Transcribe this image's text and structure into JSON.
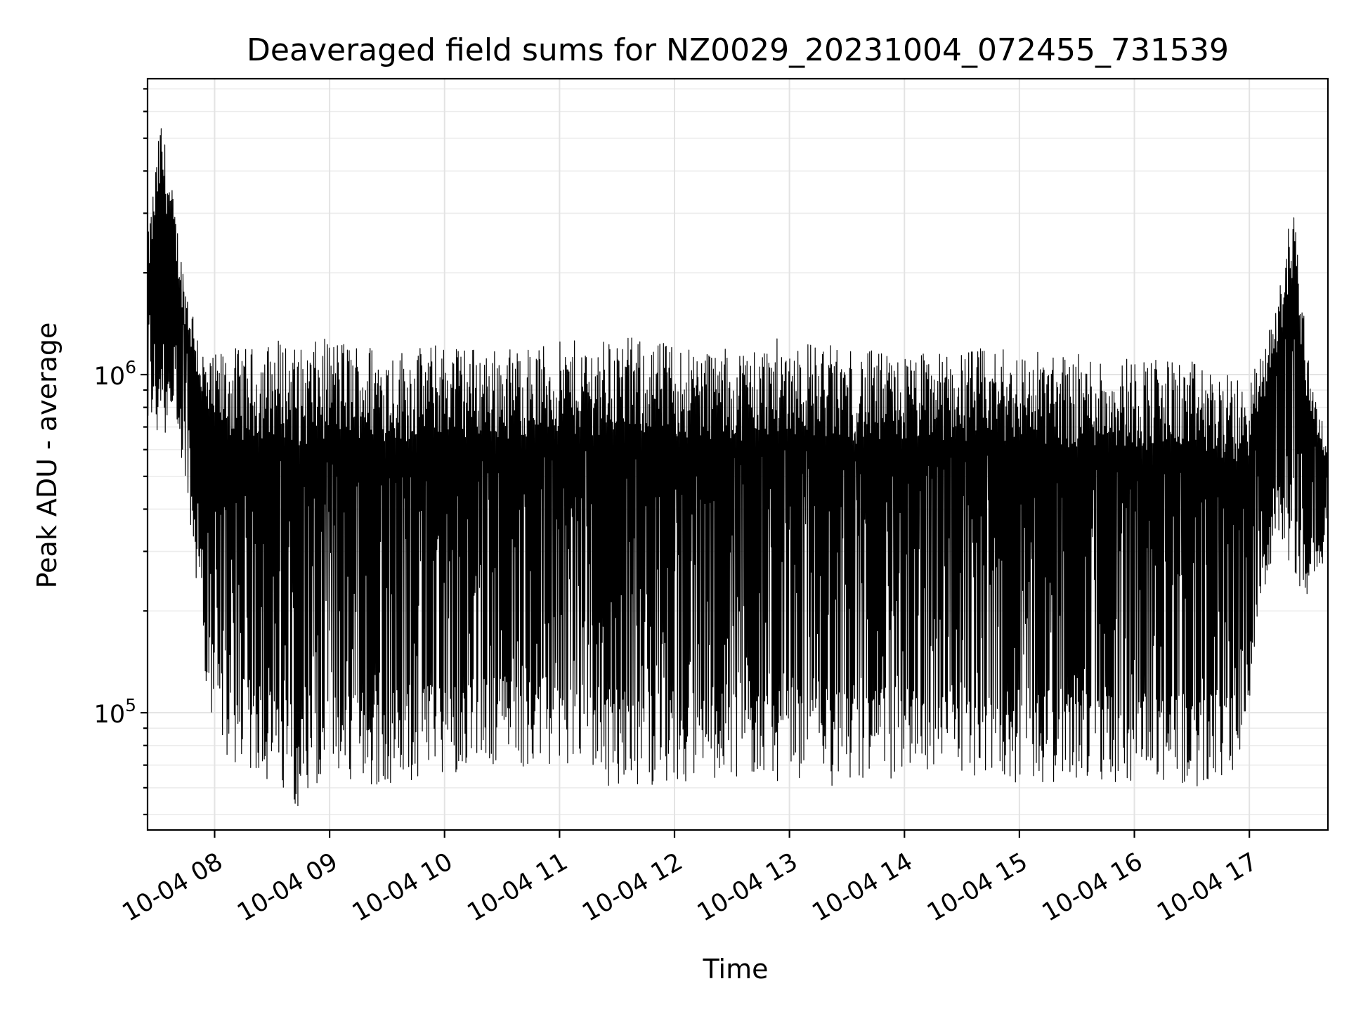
{
  "chart_data": {
    "type": "line",
    "title": "Deaveraged field sums for NZ0029_20231004_072455_731539",
    "xlabel": "Time",
    "ylabel": "Peak ADU - average",
    "yscale": "log",
    "ylim": [
      45000,
      7500000
    ],
    "xlim": [
      "2023-10-04T07:25:00",
      "2023-10-04T17:41:00"
    ],
    "grid": true,
    "legend": "none",
    "line_color": "#000000",
    "x_ticks": [
      {
        "t": "2023-10-04T08:00:00",
        "label": "10-04 08"
      },
      {
        "t": "2023-10-04T09:00:00",
        "label": "10-04 09"
      },
      {
        "t": "2023-10-04T10:00:00",
        "label": "10-04 10"
      },
      {
        "t": "2023-10-04T11:00:00",
        "label": "10-04 11"
      },
      {
        "t": "2023-10-04T12:00:00",
        "label": "10-04 12"
      },
      {
        "t": "2023-10-04T13:00:00",
        "label": "10-04 13"
      },
      {
        "t": "2023-10-04T14:00:00",
        "label": "10-04 14"
      },
      {
        "t": "2023-10-04T15:00:00",
        "label": "10-04 15"
      },
      {
        "t": "2023-10-04T16:00:00",
        "label": "10-04 16"
      },
      {
        "t": "2023-10-04T17:00:00",
        "label": "10-04 17"
      }
    ],
    "y_ticks": [
      {
        "value": 100000,
        "base": "10",
        "exp": "5"
      },
      {
        "value": 1000000,
        "base": "10",
        "exp": "6"
      }
    ],
    "series": [
      {
        "envelope": [
          {
            "t": "2023-10-04T07:25:00",
            "min": 620000,
            "max": 2500000
          },
          {
            "t": "2023-10-04T07:32:00",
            "min": 650000,
            "max": 5800000
          },
          {
            "t": "2023-10-04T07:38:00",
            "min": 700000,
            "max": 3500000
          },
          {
            "t": "2023-10-04T07:44:00",
            "min": 450000,
            "max": 2000000
          },
          {
            "t": "2023-10-04T07:50:00",
            "min": 250000,
            "max": 1500000
          },
          {
            "t": "2023-10-04T07:56:00",
            "min": 110000,
            "max": 1100000
          },
          {
            "t": "2023-10-04T08:05:00",
            "min": 72000,
            "max": 1200000
          },
          {
            "t": "2023-10-04T08:20:00",
            "min": 66000,
            "max": 1200000
          },
          {
            "t": "2023-10-04T08:35:00",
            "min": 58000,
            "max": 1300000
          },
          {
            "t": "2023-10-04T08:45:00",
            "min": 52000,
            "max": 1200000
          },
          {
            "t": "2023-10-04T09:00:00",
            "min": 56000,
            "max": 1300000
          },
          {
            "t": "2023-10-04T09:20:00",
            "min": 60000,
            "max": 1250000
          },
          {
            "t": "2023-10-04T09:40:00",
            "min": 62000,
            "max": 1200000
          },
          {
            "t": "2023-10-04T10:00:00",
            "min": 66000,
            "max": 1250000
          },
          {
            "t": "2023-10-04T10:30:00",
            "min": 70000,
            "max": 1200000
          },
          {
            "t": "2023-10-04T11:00:00",
            "min": 66000,
            "max": 1250000
          },
          {
            "t": "2023-10-04T11:30:00",
            "min": 60000,
            "max": 1300000
          },
          {
            "t": "2023-10-04T12:00:00",
            "min": 62000,
            "max": 1250000
          },
          {
            "t": "2023-10-04T12:30:00",
            "min": 64000,
            "max": 1200000
          },
          {
            "t": "2023-10-04T13:00:00",
            "min": 62000,
            "max": 1300000
          },
          {
            "t": "2023-10-04T13:30:00",
            "min": 60000,
            "max": 1200000
          },
          {
            "t": "2023-10-04T14:00:00",
            "min": 64000,
            "max": 1150000
          },
          {
            "t": "2023-10-04T14:30:00",
            "min": 66000,
            "max": 1200000
          },
          {
            "t": "2023-10-04T15:00:00",
            "min": 62000,
            "max": 1200000
          },
          {
            "t": "2023-10-04T15:30:00",
            "min": 62000,
            "max": 1150000
          },
          {
            "t": "2023-10-04T16:00:00",
            "min": 60000,
            "max": 1150000
          },
          {
            "t": "2023-10-04T16:30:00",
            "min": 60000,
            "max": 1100000
          },
          {
            "t": "2023-10-04T16:58:00",
            "min": 66000,
            "max": 950000
          },
          {
            "t": "2023-10-04T17:05:00",
            "min": 170000,
            "max": 1100000
          },
          {
            "t": "2023-10-04T17:15:00",
            "min": 330000,
            "max": 1700000
          },
          {
            "t": "2023-10-04T17:23:00",
            "min": 250000,
            "max": 3500000
          },
          {
            "t": "2023-10-04T17:30:00",
            "min": 220000,
            "max": 1200000
          },
          {
            "t": "2023-10-04T17:41:00",
            "min": 300000,
            "max": 600000
          }
        ]
      }
    ]
  }
}
